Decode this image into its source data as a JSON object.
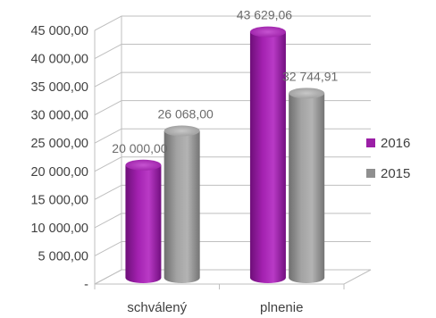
{
  "chart_data": {
    "type": "bar",
    "style": "3d-cylinder",
    "categories": [
      "schválený",
      "plnenie"
    ],
    "series": [
      {
        "name": "2016",
        "values": [
          20000.0,
          43629.06
        ],
        "labels": [
          "20 000,00",
          "43 629,06"
        ],
        "color": "#9b1fa6"
      },
      {
        "name": "2015",
        "values": [
          26068.0,
          32744.91
        ],
        "labels": [
          "26 068,00",
          "32 744,91"
        ],
        "color": "#8f8f8f"
      }
    ],
    "y_ticks": [
      "-",
      "5 000,00",
      "10 000,00",
      "15 000,00",
      "20 000,00",
      "25 000,00",
      "30 000,00",
      "35 000,00",
      "40 000,00",
      "45 000,00"
    ],
    "ylim": [
      0,
      45000
    ],
    "y_step": 5000,
    "grid": true,
    "legend_position": "right"
  }
}
